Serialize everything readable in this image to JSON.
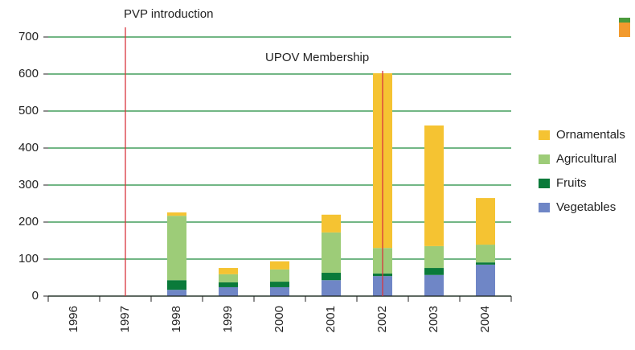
{
  "chart_data": {
    "type": "stacked_bar",
    "categories": [
      "1996",
      "1997",
      "1998",
      "1999",
      "2000",
      "2001",
      "2002",
      "2003",
      "2004"
    ],
    "series": [
      {
        "name": "Vegetables",
        "color": "#6f86c6",
        "values": [
          0,
          0,
          17,
          24,
          24,
          43,
          54,
          57,
          85
        ]
      },
      {
        "name": "Fruits",
        "color": "#0a7a3a",
        "values": [
          0,
          0,
          26,
          13,
          15,
          20,
          7,
          19,
          6
        ]
      },
      {
        "name": "Agricultural",
        "color": "#9dcc78",
        "values": [
          0,
          0,
          174,
          22,
          33,
          109,
          69,
          59,
          48
        ]
      },
      {
        "name": "Ornamentals",
        "color": "#f5c332",
        "values": [
          0,
          0,
          9,
          17,
          22,
          48,
          472,
          326,
          126
        ]
      }
    ],
    "ylim": [
      0,
      700
    ],
    "yticks": [
      0,
      100,
      200,
      300,
      400,
      500,
      600,
      700
    ],
    "grid": true,
    "grid_color": "#1f8a3c",
    "legend": "right",
    "annotations": [
      {
        "label": "PVP introduction",
        "x": "1997",
        "color": "#d9363e"
      },
      {
        "label": "UPOV Membership",
        "x": "2002",
        "color": "#d9363e"
      }
    ]
  }
}
